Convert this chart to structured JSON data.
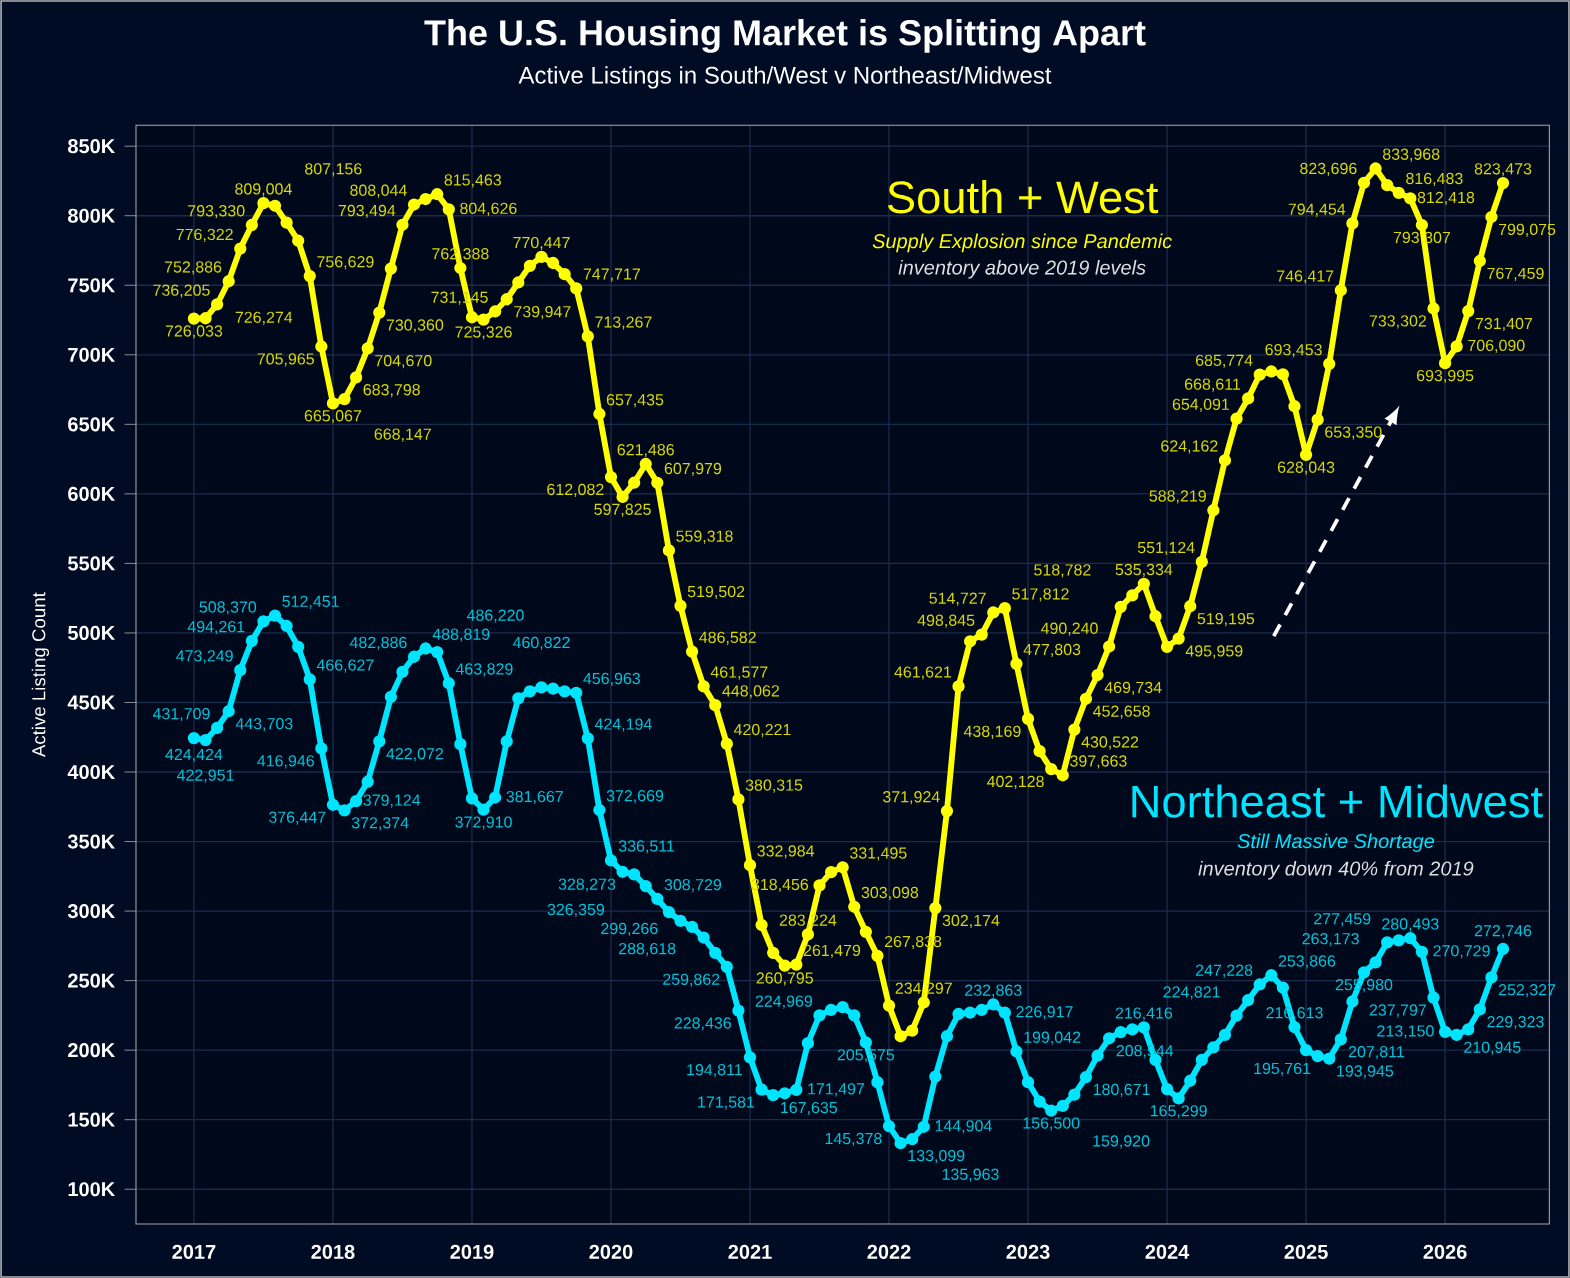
{
  "chart_data": {
    "type": "line",
    "title": "The U.S. Housing Market is Splitting Apart",
    "subtitle": "Active Listings in South/West v Northeast/Midwest",
    "ylabel": "Active Listing Count",
    "annotations": [
      "Supply Explosion since Pandemic",
      "inventory above 2019 levels",
      "Still Massive Shortage",
      "inventory down 40% from 2019"
    ],
    "x": [
      "2017-01",
      "2017-02",
      "2017-03",
      "2017-04",
      "2017-05",
      "2017-06",
      "2017-07",
      "2017-08",
      "2017-09",
      "2017-10",
      "2017-11",
      "2017-12",
      "2018-01",
      "2018-02",
      "2018-03",
      "2018-04",
      "2018-05",
      "2018-06",
      "2018-07",
      "2018-08",
      "2018-09",
      "2018-10",
      "2018-11",
      "2018-12",
      "2019-01",
      "2019-02",
      "2019-03",
      "2019-04",
      "2019-05",
      "2019-06",
      "2019-07",
      "2019-08",
      "2019-09",
      "2019-10",
      "2019-11",
      "2019-12",
      "2020-01",
      "2020-02",
      "2020-03",
      "2020-04",
      "2020-05",
      "2020-06",
      "2020-07",
      "2020-08",
      "2020-09",
      "2020-10",
      "2020-11",
      "2020-12",
      "2021-01",
      "2021-02",
      "2021-03",
      "2021-04",
      "2021-05",
      "2021-06",
      "2021-07",
      "2021-08",
      "2021-09",
      "2021-10",
      "2021-11",
      "2021-12",
      "2022-01",
      "2022-02",
      "2022-03",
      "2022-04",
      "2022-05",
      "2022-06",
      "2022-07",
      "2022-08",
      "2022-09",
      "2022-10",
      "2022-11",
      "2022-12",
      "2023-01",
      "2023-02",
      "2023-03",
      "2023-04",
      "2023-05",
      "2023-06",
      "2023-07",
      "2023-08",
      "2023-09",
      "2023-10",
      "2023-11",
      "2023-12",
      "2024-01",
      "2024-02",
      "2024-03",
      "2024-04",
      "2024-05",
      "2024-06",
      "2024-07",
      "2024-08",
      "2024-09",
      "2024-10",
      "2024-11",
      "2024-12",
      "2025-01",
      "2025-02",
      "2025-03",
      "2025-04",
      "2025-05",
      "2025-06",
      "2025-07",
      "2025-08",
      "2025-09",
      "2025-10",
      "2025-11",
      "2025-12",
      "2026-01",
      "2026-02",
      "2026-03",
      "2026-04",
      "2026-05",
      "2026-06"
    ],
    "series": [
      {
        "name": "South + West",
        "color": "#ffff00",
        "values": [
          726033,
          726274,
          736205,
          752886,
          776322,
          793330,
          809004,
          807156,
          795000,
          782000,
          756629,
          705965,
          665067,
          668147,
          683798,
          704670,
          730360,
          762000,
          793494,
          808044,
          812000,
          815463,
          804626,
          762388,
          727000,
          725326,
          731145,
          739947,
          752000,
          764000,
          770447,
          766000,
          758000,
          747717,
          713267,
          657435,
          612082,
          597825,
          608000,
          621486,
          607979,
          559318,
          519502,
          486582,
          461577,
          448062,
          420221,
          380315,
          332984,
          290000,
          270000,
          260795,
          261479,
          283224,
          318456,
          328000,
          331495,
          303098,
          285000,
          267838,
          232000,
          210000,
          214000,
          234297,
          302174,
          371924,
          461621,
          494000,
          498845,
          514727,
          517812,
          477803,
          438169,
          415000,
          402128,
          397663,
          430522,
          452658,
          469734,
          490240,
          518782,
          527000,
          535334,
          512000,
          490000,
          495959,
          519195,
          551124,
          588219,
          624162,
          654091,
          668611,
          685774,
          688000,
          686000,
          663000,
          628043,
          653350,
          693453,
          746417,
          794454,
          823696,
          833968,
          822000,
          816483,
          812418,
          793307,
          733302,
          693995,
          706090,
          731407,
          767459,
          799075,
          823473
        ],
        "value_labels": [
          "726,033",
          "726,274",
          "736,205",
          "752,886",
          "776,322",
          "793,330",
          "809,004",
          "807,156",
          null,
          null,
          "756,629",
          "705,965",
          "665,067",
          "668,147",
          "683,798",
          "704,670",
          "730,360",
          null,
          "793,494",
          "808,044",
          null,
          "815,463",
          "804,626",
          "762,388",
          null,
          "725,326",
          "731,145",
          "739,947",
          null,
          null,
          "770,447",
          null,
          null,
          "747,717",
          "713,267",
          "657,435",
          "612,082",
          "597,825",
          null,
          "621,486",
          "607,979",
          "559,318",
          "519,502",
          "486,582",
          "461,577",
          "448,062",
          "420,221",
          "380,315",
          "332,984",
          null,
          null,
          "260,795",
          "261,479",
          "283,224",
          "318,456",
          null,
          "331,495",
          "303,098",
          null,
          "267,838",
          null,
          null,
          null,
          "234,297",
          "302,174",
          "371,924",
          "461,621",
          null,
          "498,845",
          "514,727",
          "517,812",
          "477,803",
          "438,169",
          null,
          "402,128",
          "397,663",
          "430,522",
          "452,658",
          "469,734",
          "490,240",
          "518,782",
          null,
          "535,334",
          null,
          null,
          "495,959",
          "519,195",
          "551,124",
          "588,219",
          "624,162",
          "654,091",
          "668,611",
          "685,774",
          null,
          null,
          null,
          "628,043",
          "653,350",
          "693,453",
          "746,417",
          "794,454",
          "823,696",
          "833,968",
          null,
          "816,483",
          "812,418",
          "793,307",
          "733,302",
          "693,995",
          "706,090",
          "731,407",
          "767,459",
          "799,075",
          "823,473"
        ]
      },
      {
        "name": "Northeast + Midwest",
        "color": "#00e5ff",
        "values": [
          424424,
          422951,
          431709,
          443703,
          473249,
          494261,
          508370,
          512451,
          505000,
          490000,
          466627,
          416946,
          376447,
          372374,
          379124,
          393000,
          422072,
          454000,
          472000,
          482886,
          488819,
          486220,
          463829,
          420000,
          381000,
          372910,
          381667,
          422000,
          453000,
          458000,
          460822,
          460000,
          458000,
          456963,
          424194,
          372669,
          336511,
          328273,
          326359,
          318000,
          308729,
          299266,
          293000,
          288618,
          281000,
          270000,
          259862,
          228436,
          194811,
          171581,
          167635,
          169000,
          171497,
          205000,
          224969,
          229000,
          231000,
          225000,
          205575,
          177000,
          145378,
          133099,
          135963,
          144904,
          181000,
          210000,
          226000,
          227000,
          229000,
          232863,
          226917,
          199042,
          177000,
          163000,
          156500,
          159920,
          168000,
          180671,
          196000,
          208544,
          213000,
          215000,
          216416,
          193000,
          172000,
          165299,
          178000,
          193000,
          202000,
          211000,
          224821,
          236000,
          247228,
          253866,
          245000,
          216613,
          200000,
          195761,
          193945,
          207811,
          235000,
          255980,
          263173,
          277459,
          279000,
          280493,
          270729,
          237797,
          213150,
          210945,
          215000,
          229323,
          252327,
          272746
        ],
        "value_labels": [
          "424,424",
          "422,951",
          "431,709",
          "443,703",
          "473,249",
          "494,261",
          "508,370",
          "512,451",
          null,
          null,
          "466,627",
          "416,946",
          "376,447",
          "372,374",
          "379,124",
          null,
          "422,072",
          null,
          null,
          "482,886",
          "488,819",
          "486,220",
          "463,829",
          null,
          null,
          "372,910",
          "381,667",
          null,
          null,
          null,
          "460,822",
          null,
          null,
          "456,963",
          "424,194",
          "372,669",
          "336,511",
          "328,273",
          "326,359",
          null,
          "308,729",
          "299,266",
          null,
          "288,618",
          null,
          null,
          "259,862",
          "228,436",
          "194,811",
          "171,581",
          "167,635",
          null,
          "171,497",
          null,
          "224,969",
          null,
          null,
          null,
          "205,575",
          null,
          "145,378",
          "133,099",
          "135,963",
          "144,904",
          null,
          null,
          null,
          null,
          null,
          "232,863",
          "226,917",
          "199,042",
          null,
          null,
          "156,500",
          "159,920",
          null,
          "180,671",
          null,
          "208,544",
          null,
          null,
          "216,416",
          null,
          null,
          "165,299",
          null,
          null,
          null,
          null,
          "224,821",
          null,
          "247,228",
          "253,866",
          null,
          "216,613",
          null,
          "195,761",
          "193,945",
          "207,811",
          null,
          "255,980",
          "263,173",
          "277,459",
          null,
          "280,493",
          "270,729",
          "237,797",
          "213,150",
          "210,945",
          null,
          "229,323",
          "252,327",
          "272,746"
        ]
      }
    ],
    "xlim": [
      "2016-08",
      "2026-10"
    ],
    "xticks": [
      "2017",
      "2018",
      "2019",
      "2020",
      "2021",
      "2022",
      "2023",
      "2024",
      "2025",
      "2026"
    ],
    "ylim": [
      75000,
      865000
    ],
    "yticks": [
      {
        "value": 100000,
        "label": "100K"
      },
      {
        "value": 150000,
        "label": "150K"
      },
      {
        "value": 200000,
        "label": "200K"
      },
      {
        "value": 250000,
        "label": "250K"
      },
      {
        "value": 300000,
        "label": "300K"
      },
      {
        "value": 350000,
        "label": "350K"
      },
      {
        "value": 400000,
        "label": "400K"
      },
      {
        "value": 450000,
        "label": "450K"
      },
      {
        "value": 500000,
        "label": "500K"
      },
      {
        "value": 550000,
        "label": "550K"
      },
      {
        "value": 600000,
        "label": "600K"
      },
      {
        "value": 650000,
        "label": "650K"
      },
      {
        "value": 700000,
        "label": "700K"
      },
      {
        "value": 750000,
        "label": "750K"
      },
      {
        "value": 800000,
        "label": "800K"
      },
      {
        "value": 850000,
        "label": "850K"
      }
    ],
    "grid": true,
    "marker": "circle",
    "line_style": "solid"
  }
}
